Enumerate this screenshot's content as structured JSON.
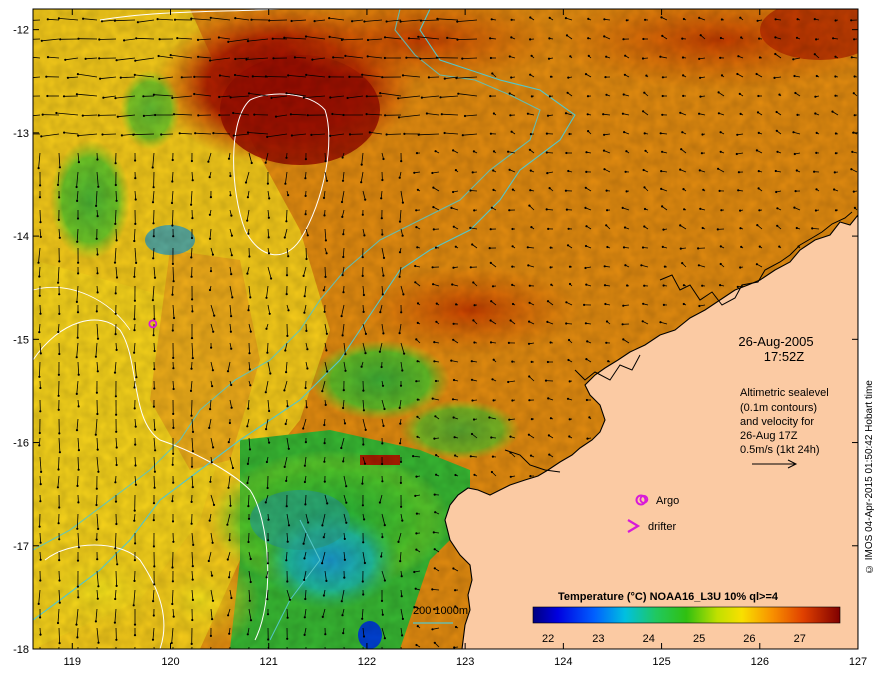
{
  "map": {
    "lon_range": [
      118.6,
      127.0
    ],
    "lat_range": [
      -18.0,
      -11.8
    ],
    "lon_ticks": [
      "119",
      "120",
      "121",
      "122",
      "123",
      "124",
      "125",
      "126",
      "127"
    ],
    "lat_ticks": [
      "-12",
      "-13",
      "-14",
      "-15",
      "-16",
      "-17",
      "-18"
    ],
    "date": "26-Aug-2005",
    "time": "17:52Z",
    "legend_lines": [
      "Altimetric sealevel",
      "(0.1m contours)",
      "and velocity for",
      "26-Aug 17Z",
      "0.5m/s (1kt 24h)"
    ],
    "argo_label": "Argo",
    "drifter_label": "drifter",
    "bathy_label": "200  1000m",
    "colorbar_title": "Temperature (°C) NOAA16_L3U 10% ql>=4",
    "colorbar_ticks": [
      "22",
      "23",
      "24",
      "25",
      "26",
      "27"
    ],
    "colorbar_range": [
      21.7,
      27.8
    ],
    "credit": "© IMOS 04-Apr-2015 01:50:42 Hobart time",
    "colors": {
      "land": "#fbcaa3",
      "bathy_contour": "#55c7c9",
      "sealevel_contour": "#ffffff",
      "argo": "#d81ad8",
      "drifter": "#d81ad8"
    },
    "argo_points": [
      [
        119.82,
        -14.85
      ],
      [
        124.82,
        -16.55
      ]
    ]
  }
}
